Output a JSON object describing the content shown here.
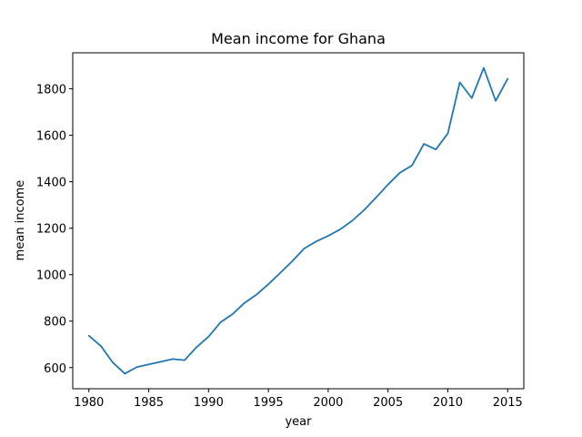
{
  "chart_data": {
    "type": "line",
    "title": "Mean income for Ghana",
    "xlabel": "year",
    "ylabel": "mean income",
    "xlim": [
      1978.65,
      2016.35
    ],
    "ylim": [
      509,
      1955
    ],
    "xticks": [
      1980,
      1985,
      1990,
      1995,
      2000,
      2005,
      2010,
      2015
    ],
    "yticks": [
      600,
      800,
      1000,
      1200,
      1400,
      1600,
      1800
    ],
    "grid": false,
    "series": [
      {
        "color": "#1f77b4",
        "x": [
          1980,
          1981,
          1982,
          1983,
          1984,
          1985,
          1986,
          1987,
          1988,
          1989,
          1990,
          1991,
          1992,
          1993,
          1994,
          1995,
          1996,
          1997,
          1998,
          1999,
          2000,
          2001,
          2002,
          2003,
          2004,
          2005,
          2006,
          2007,
          2008,
          2009,
          2010,
          2011,
          2012,
          2013,
          2014,
          2015
        ],
        "y": [
          737,
          693,
          622,
          574,
          602,
          614,
          625,
          637,
          632,
          688,
          733,
          795,
          830,
          878,
          914,
          959,
          1008,
          1058,
          1113,
          1143,
          1167,
          1195,
          1232,
          1278,
          1332,
          1388,
          1439,
          1470,
          1563,
          1539,
          1608,
          1828,
          1760,
          1890,
          1748,
          1843
        ]
      }
    ]
  }
}
